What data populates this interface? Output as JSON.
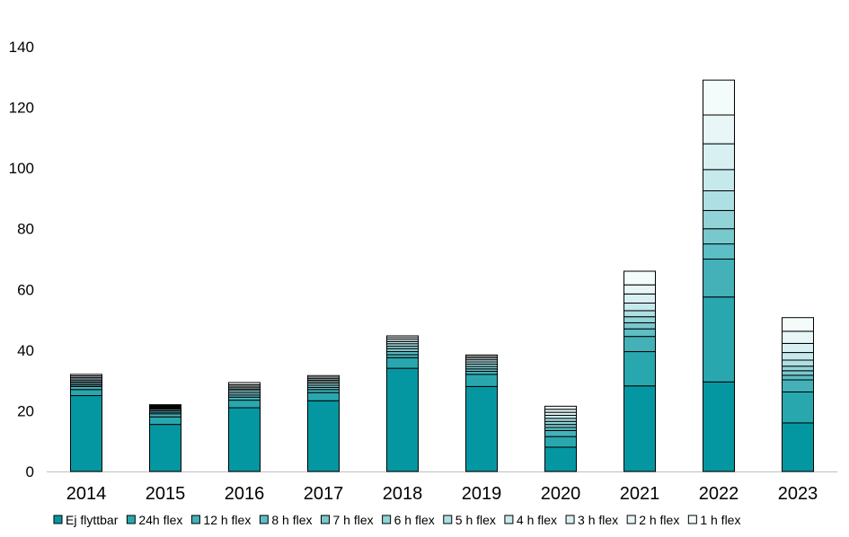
{
  "chart_data": {
    "type": "bar",
    "stacked": true,
    "categories": [
      "2014",
      "2015",
      "2016",
      "2017",
      "2018",
      "2019",
      "2020",
      "2021",
      "2022",
      "2023"
    ],
    "ylim": [
      0,
      140
    ],
    "yticks": [
      0,
      20,
      40,
      60,
      80,
      100,
      120,
      140
    ],
    "grid": false,
    "legend_position": "bottom",
    "series": [
      {
        "name": "Ej flyttbar",
        "color": "#0597a1",
        "values": [
          25,
          15.5,
          21,
          23.3,
          34,
          28,
          8,
          28.2,
          29.5,
          16
        ]
      },
      {
        "name": "24h flex",
        "color": "#29a7ae",
        "values": [
          2,
          2.5,
          2.5,
          2.7,
          3.5,
          4,
          3.5,
          11.3,
          28,
          10.2
        ]
      },
      {
        "name": "12 h flex",
        "color": "#44b0b8",
        "values": [
          1,
          1,
          1,
          1,
          1,
          1,
          2,
          5,
          12.5,
          4
        ]
      },
      {
        "name": "8 h flex",
        "color": "#5dbec5",
        "values": [
          0.5,
          0.5,
          0.7,
          0.7,
          1,
          0.8,
          1,
          2.5,
          5,
          1.5
        ]
      },
      {
        "name": "7 h flex",
        "color": "#78c9ce",
        "values": [
          0.5,
          0.5,
          0.7,
          0.7,
          1,
          0.8,
          1,
          2,
          5,
          1.5
        ]
      },
      {
        "name": "6 h flex",
        "color": "#92d3d8",
        "values": [
          0.5,
          0.5,
          0.7,
          0.7,
          0.8,
          0.8,
          1,
          2,
          6,
          1.5
        ]
      },
      {
        "name": "5 h flex",
        "color": "#aedfe3",
        "values": [
          0.5,
          0.3,
          0.5,
          0.5,
          0.8,
          0.7,
          1,
          2,
          6.5,
          2
        ]
      },
      {
        "name": "4 h flex",
        "color": "#c6e9ec",
        "values": [
          0.5,
          0.3,
          0.5,
          0.5,
          0.7,
          0.7,
          1,
          2.5,
          7,
          2.5
        ]
      },
      {
        "name": "3 h flex",
        "color": "#d9f0f2",
        "values": [
          0.5,
          0.3,
          0.5,
          0.5,
          0.7,
          0.6,
          1,
          3,
          8.5,
          3
        ]
      },
      {
        "name": "2 h flex",
        "color": "#e8f6f7",
        "values": [
          0.5,
          0.3,
          0.5,
          0.5,
          0.6,
          0.5,
          1,
          3,
          9.5,
          4
        ]
      },
      {
        "name": "1 h flex",
        "color": "#f4fbfb",
        "values": [
          0.5,
          0.3,
          0.7,
          0.5,
          0.6,
          0.5,
          1,
          4.5,
          11.5,
          4.5
        ]
      }
    ]
  }
}
